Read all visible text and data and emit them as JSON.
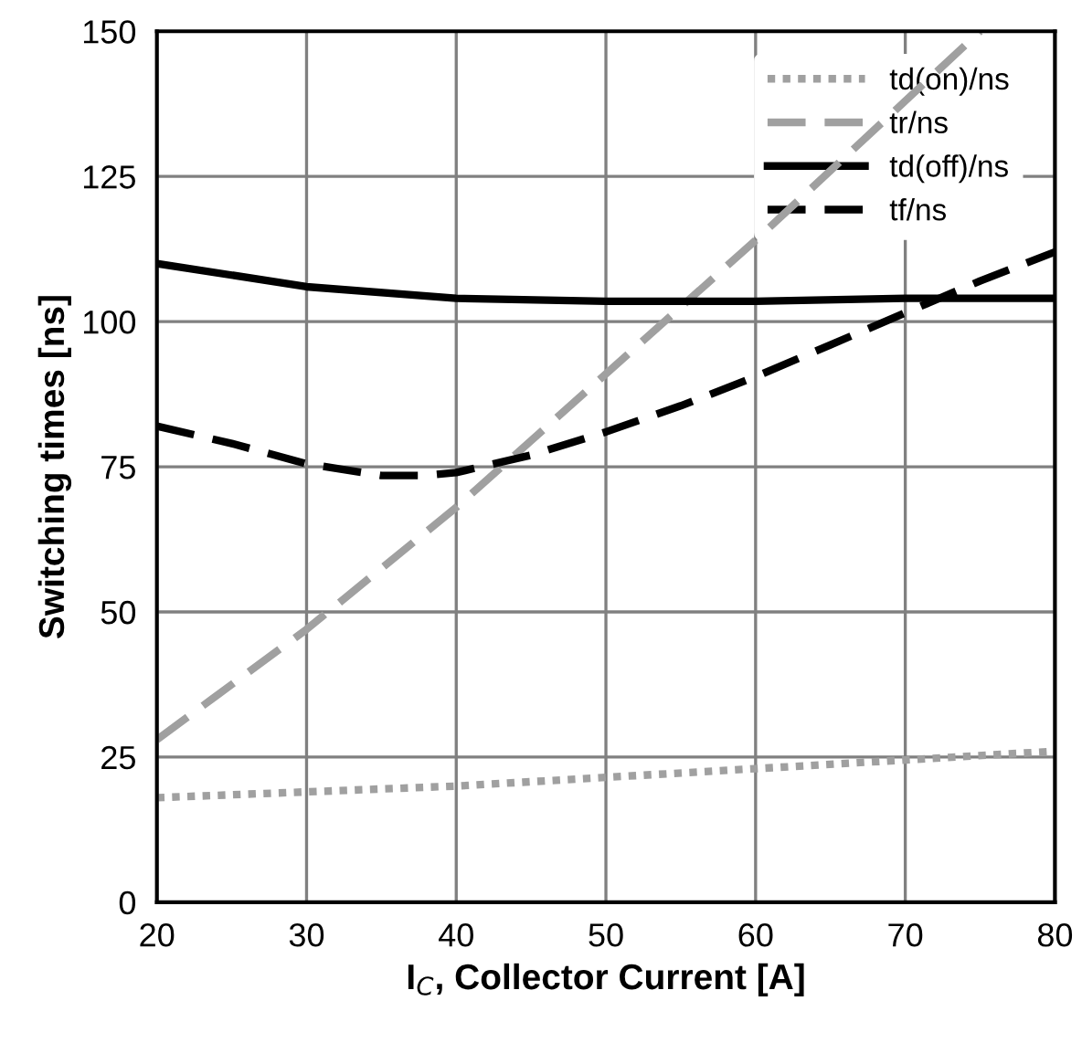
{
  "chart_data": {
    "type": "line",
    "xlabel": "I$_{C}$, Collector Current [A]",
    "ylabel": "Switching times [ns]",
    "xlim": [
      20,
      80
    ],
    "xticks": [
      20,
      30,
      40,
      50,
      60,
      70,
      80
    ],
    "ylim": [
      0,
      150
    ],
    "yticks": [
      0,
      25,
      50,
      75,
      100,
      125,
      150
    ],
    "grid": true,
    "legend": "top right",
    "marker": "none",
    "series": [
      {
        "name": "td(on)/ns",
        "color": "#a0a0a0",
        "line_style": "dotted",
        "x": [
          20,
          30,
          40,
          50,
          60,
          70,
          80
        ],
        "values": [
          18,
          19,
          20,
          21.5,
          23,
          24.5,
          26
        ]
      },
      {
        "name": "tr/ns",
        "color": "#a0a0a0",
        "line_style": "dashed",
        "x": [
          20,
          30,
          40,
          50,
          60,
          70,
          75
        ],
        "values": [
          28,
          47,
          68,
          91,
          114,
          138,
          150
        ]
      },
      {
        "name": "td(off)/ns",
        "color": "#000000",
        "line_style": "solid",
        "x": [
          20,
          30,
          40,
          50,
          60,
          70,
          80
        ],
        "values": [
          110,
          106,
          104,
          103.5,
          103.5,
          104,
          104
        ]
      },
      {
        "name": "tf/ns",
        "color": "#000000",
        "line_style": "dashed",
        "x": [
          20,
          25,
          30,
          35,
          38,
          40,
          45,
          50,
          55,
          60,
          65,
          70,
          75,
          80
        ],
        "values": [
          82,
          79,
          75.5,
          73.5,
          73.5,
          74,
          77,
          81,
          85.5,
          90.5,
          96,
          101.5,
          107,
          112
        ]
      }
    ]
  }
}
